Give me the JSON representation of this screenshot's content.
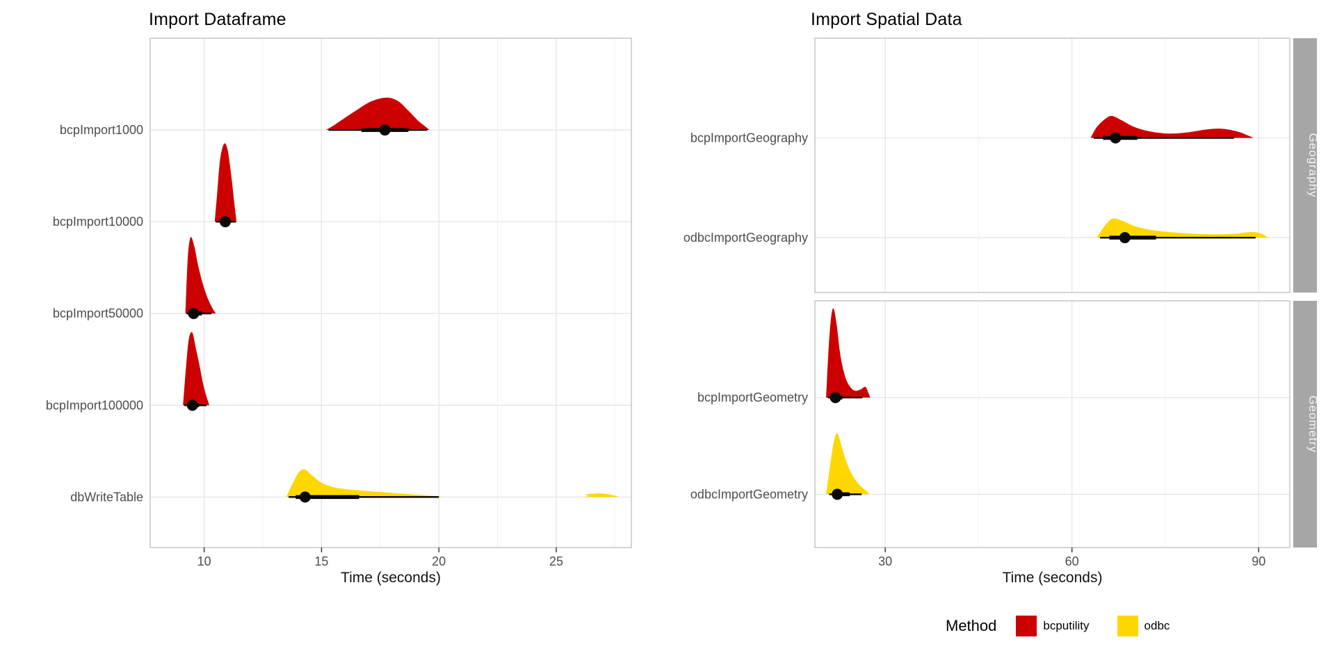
{
  "page": {
    "background": "#ffffff"
  },
  "colors": {
    "bcputility": "#CC0000",
    "odbc": "#FFD700"
  },
  "legend": {
    "title": "Method",
    "items": [
      {
        "label": "bcputility",
        "color": "#CC0000"
      },
      {
        "label": "odbc",
        "color": "#FFD700"
      }
    ]
  },
  "chart_data": [
    {
      "type": "halfeye",
      "title": "Import Dataframe",
      "xlabel": "Time (seconds)",
      "xlim": [
        7.7,
        28.2
      ],
      "xticks": [
        10,
        15,
        20,
        25
      ],
      "grid": true,
      "legend_position": "bottom",
      "facets": [
        {
          "label": null,
          "rows": [
            {
              "label": "bcpImport1000",
              "method": "bcputility",
              "point": 17.7,
              "thick": [
                16.7,
                18.7
              ],
              "thin": [
                15.3,
                19.5
              ],
              "height_frac": 0.35,
              "density": [
                [
                  15.2,
                  0
                ],
                [
                  15.6,
                  0.18
                ],
                [
                  16.0,
                  0.38
                ],
                [
                  16.5,
                  0.62
                ],
                [
                  17.0,
                  0.85
                ],
                [
                  17.5,
                  0.98
                ],
                [
                  17.9,
                  1.0
                ],
                [
                  18.3,
                  0.88
                ],
                [
                  18.7,
                  0.6
                ],
                [
                  19.1,
                  0.3
                ],
                [
                  19.4,
                  0.12
                ],
                [
                  19.6,
                  0
                ]
              ]
            },
            {
              "label": "bcpImport10000",
              "method": "bcputility",
              "point": 10.9,
              "thick": [
                10.72,
                11.12
              ],
              "thin": [
                10.5,
                11.35
              ],
              "height_frac": 0.85,
              "density": [
                [
                  10.45,
                  0
                ],
                [
                  10.55,
                  0.35
                ],
                [
                  10.68,
                  0.8
                ],
                [
                  10.85,
                  1.0
                ],
                [
                  11.0,
                  0.92
                ],
                [
                  11.15,
                  0.6
                ],
                [
                  11.28,
                  0.25
                ],
                [
                  11.38,
                  0
                ]
              ]
            },
            {
              "label": "bcpImport50000",
              "method": "bcputility",
              "point": 9.55,
              "thick": [
                9.4,
                9.9
              ],
              "thin": [
                9.25,
                10.3
              ],
              "height_frac": 0.83,
              "density": [
                [
                  9.2,
                  0
                ],
                [
                  9.3,
                  0.72
                ],
                [
                  9.42,
                  1.0
                ],
                [
                  9.58,
                  0.88
                ],
                [
                  9.75,
                  0.62
                ],
                [
                  9.95,
                  0.38
                ],
                [
                  10.15,
                  0.2
                ],
                [
                  10.35,
                  0.07
                ],
                [
                  10.5,
                  0
                ]
              ]
            },
            {
              "label": "bcpImport100000",
              "method": "bcputility",
              "point": 9.5,
              "thick": [
                9.32,
                9.78
              ],
              "thin": [
                9.15,
                10.1
              ],
              "height_frac": 0.79,
              "density": [
                [
                  9.1,
                  0
                ],
                [
                  9.22,
                  0.5
                ],
                [
                  9.35,
                  0.92
                ],
                [
                  9.5,
                  1.0
                ],
                [
                  9.65,
                  0.78
                ],
                [
                  9.8,
                  0.55
                ],
                [
                  9.95,
                  0.3
                ],
                [
                  10.1,
                  0.12
                ],
                [
                  10.22,
                  0
                ]
              ]
            },
            {
              "label": "dbWriteTable",
              "method": "odbc",
              "point": 14.3,
              "thick": [
                13.9,
                16.6
              ],
              "thin": [
                13.6,
                20.0
              ],
              "height_frac": 0.3,
              "density": [
                [
                  13.5,
                  0
                ],
                [
                  13.8,
                  0.55
                ],
                [
                  14.05,
                  0.92
                ],
                [
                  14.3,
                  1.0
                ],
                [
                  14.6,
                  0.78
                ],
                [
                  15.0,
                  0.52
                ],
                [
                  15.5,
                  0.36
                ],
                [
                  16.1,
                  0.28
                ],
                [
                  16.9,
                  0.22
                ],
                [
                  17.7,
                  0.17
                ],
                [
                  18.5,
                  0.12
                ],
                [
                  19.3,
                  0.07
                ],
                [
                  20.1,
                  0.02
                ],
                [
                  20.4,
                  0
                ],
                [
                  25.8,
                  0
                ],
                [
                  26.3,
                  0.1
                ],
                [
                  26.9,
                  0.13
                ],
                [
                  27.4,
                  0.07
                ],
                [
                  27.7,
                  0
                ]
              ]
            }
          ]
        }
      ]
    },
    {
      "type": "halfeye",
      "title": "Import Spatial Data",
      "xlabel": "Time (seconds)",
      "xlim": [
        18.7,
        95
      ],
      "xticks": [
        30,
        60,
        90
      ],
      "grid": true,
      "legend_position": "bottom",
      "facets": [
        {
          "label": "Geography",
          "rows": [
            {
              "label": "bcpImportGeography",
              "method": "bcputility",
              "point": 67,
              "thick": [
                65,
                70.5
              ],
              "thin": [
                63.5,
                86
              ],
              "height_frac": 0.22,
              "density": [
                [
                  63,
                  0
                ],
                [
                  64,
                  0.5
                ],
                [
                  65.5,
                  0.9
                ],
                [
                  66.5,
                  1.0
                ],
                [
                  68,
                  0.8
                ],
                [
                  70,
                  0.5
                ],
                [
                  72.5,
                  0.3
                ],
                [
                  75.5,
                  0.2
                ],
                [
                  78.5,
                  0.25
                ],
                [
                  81.5,
                  0.38
                ],
                [
                  84,
                  0.42
                ],
                [
                  86.5,
                  0.3
                ],
                [
                  88.2,
                  0.12
                ],
                [
                  89.2,
                  0
                ]
              ]
            },
            {
              "label": "odbcImportGeography",
              "method": "odbc",
              "point": 68.5,
              "thick": [
                66,
                73.5
              ],
              "thin": [
                64.5,
                89.5
              ],
              "height_frac": 0.19,
              "density": [
                [
                  64,
                  0
                ],
                [
                  65.2,
                  0.6
                ],
                [
                  66.5,
                  1.0
                ],
                [
                  68,
                  0.9
                ],
                [
                  70,
                  0.62
                ],
                [
                  72.5,
                  0.42
                ],
                [
                  75.5,
                  0.3
                ],
                [
                  79,
                  0.22
                ],
                [
                  83,
                  0.18
                ],
                [
                  86.5,
                  0.22
                ],
                [
                  89,
                  0.3
                ],
                [
                  90.5,
                  0.2
                ],
                [
                  91.5,
                  0
                ]
              ]
            }
          ]
        },
        {
          "label": "Geometry",
          "rows": [
            {
              "label": "bcpImportGeometry",
              "method": "bcputility",
              "point": 22,
              "thick": [
                21.3,
                23.1
              ],
              "thin": [
                20.8,
                26.3
              ],
              "height_frac": 0.92,
              "density": [
                [
                  20.5,
                  0
                ],
                [
                  20.9,
                  0.55
                ],
                [
                  21.3,
                  0.9
                ],
                [
                  21.7,
                  1.0
                ],
                [
                  22.2,
                  0.82
                ],
                [
                  22.7,
                  0.52
                ],
                [
                  23.3,
                  0.3
                ],
                [
                  24.0,
                  0.16
                ],
                [
                  25.0,
                  0.08
                ],
                [
                  26.0,
                  0.09
                ],
                [
                  26.8,
                  0.12
                ],
                [
                  27.3,
                  0.05
                ],
                [
                  27.6,
                  0
                ]
              ]
            },
            {
              "label": "odbcImportGeometry",
              "method": "odbc",
              "point": 22.3,
              "thick": [
                21.5,
                24.3
              ],
              "thin": [
                21,
                26.2
              ],
              "height_frac": 0.63,
              "density": [
                [
                  20.5,
                  0
                ],
                [
                  21.1,
                  0.45
                ],
                [
                  21.7,
                  0.85
                ],
                [
                  22.3,
                  1.0
                ],
                [
                  23.0,
                  0.78
                ],
                [
                  23.8,
                  0.52
                ],
                [
                  24.7,
                  0.32
                ],
                [
                  25.7,
                  0.17
                ],
                [
                  26.8,
                  0.07
                ],
                [
                  27.5,
                  0
                ]
              ]
            }
          ]
        }
      ]
    }
  ]
}
